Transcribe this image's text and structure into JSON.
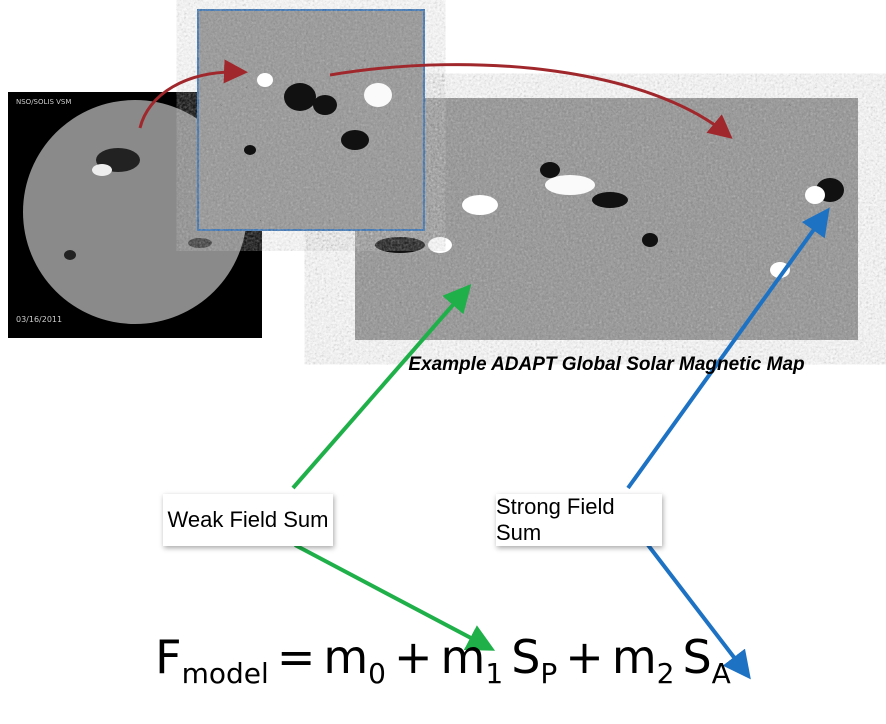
{
  "solar_image": {
    "label": "NSO/SOLIS VSM",
    "date": "03/16/2011"
  },
  "map_caption": "Example ADAPT Global Solar Magnetic Map",
  "boxes": [
    "Weak Field Sum",
    "Strong Field Sum"
  ],
  "formula": [
    {
      "text": "F",
      "sub": "model"
    },
    {
      "text": "="
    },
    {
      "text": "m",
      "sub": "0"
    },
    {
      "text": "+"
    },
    {
      "text": "m",
      "sub": "1"
    },
    {
      "text": "S",
      "sub": "P"
    },
    {
      "text": "+"
    },
    {
      "text": "m",
      "sub": "2"
    },
    {
      "text": "S",
      "sub": "A"
    }
  ]
}
